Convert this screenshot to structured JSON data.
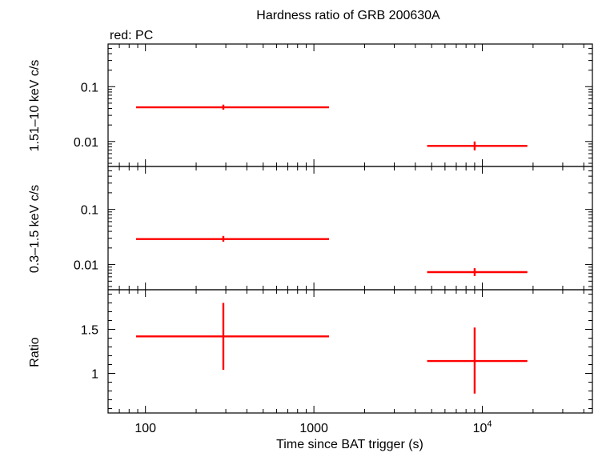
{
  "title": "Hardness ratio of GRB 200630A",
  "legend_note": "red: PC",
  "xlabel": "Time since BAT trigger (s)",
  "colors": {
    "series": "#ff0000",
    "axis": "#000000"
  },
  "chart_data": [
    {
      "type": "scatter",
      "panel": "top",
      "ylabel": "1.51–10 keV c/s",
      "xscale": "log",
      "yscale": "log",
      "xlim": [
        60,
        45000
      ],
      "ylim": [
        0.0035,
        0.6
      ],
      "yticks": [
        {
          "v": 0.1,
          "label": "0.1"
        },
        {
          "v": 0.01,
          "label": "0.01"
        }
      ],
      "series": [
        {
          "points": [
            {
              "x": 290,
              "xlo": 88,
              "xhi": 1230,
              "y": 0.042,
              "ylo": 0.038,
              "yhi": 0.047
            },
            {
              "x": 9000,
              "xlo": 4700,
              "xhi": 18500,
              "y": 0.0083,
              "ylo": 0.0069,
              "yhi": 0.01
            }
          ]
        }
      ]
    },
    {
      "type": "scatter",
      "panel": "middle",
      "ylabel": "0.3–1.5 keV c/s",
      "xscale": "log",
      "yscale": "log",
      "xlim": [
        60,
        45000
      ],
      "ylim": [
        0.0035,
        0.6
      ],
      "yticks": [
        {
          "v": 0.1,
          "label": "0.1"
        },
        {
          "v": 0.01,
          "label": "0.01"
        }
      ],
      "series": [
        {
          "points": [
            {
              "x": 290,
              "xlo": 88,
              "xhi": 1230,
              "y": 0.029,
              "ylo": 0.026,
              "yhi": 0.033
            },
            {
              "x": 9000,
              "xlo": 4700,
              "xhi": 18500,
              "y": 0.0073,
              "ylo": 0.0062,
              "yhi": 0.0086
            }
          ]
        }
      ]
    },
    {
      "type": "scatter",
      "panel": "bottom",
      "ylabel": "Ratio",
      "xscale": "log",
      "yscale": "linear",
      "xlim": [
        60,
        45000
      ],
      "ylim": [
        0.55,
        1.95
      ],
      "yticks": [
        {
          "v": 1.5,
          "label": "1.5"
        },
        {
          "v": 1,
          "label": "1"
        }
      ],
      "xticks": [
        {
          "v": 100,
          "label": "100"
        },
        {
          "v": 1000,
          "label": "1000"
        },
        {
          "v": 10000,
          "label": "10",
          "sup": "4"
        }
      ],
      "series": [
        {
          "points": [
            {
              "x": 290,
              "xlo": 88,
              "xhi": 1230,
              "y": 1.42,
              "ylo": 1.04,
              "yhi": 1.8
            },
            {
              "x": 9000,
              "xlo": 4700,
              "xhi": 18500,
              "y": 1.14,
              "ylo": 0.77,
              "yhi": 1.52
            }
          ]
        }
      ]
    }
  ]
}
